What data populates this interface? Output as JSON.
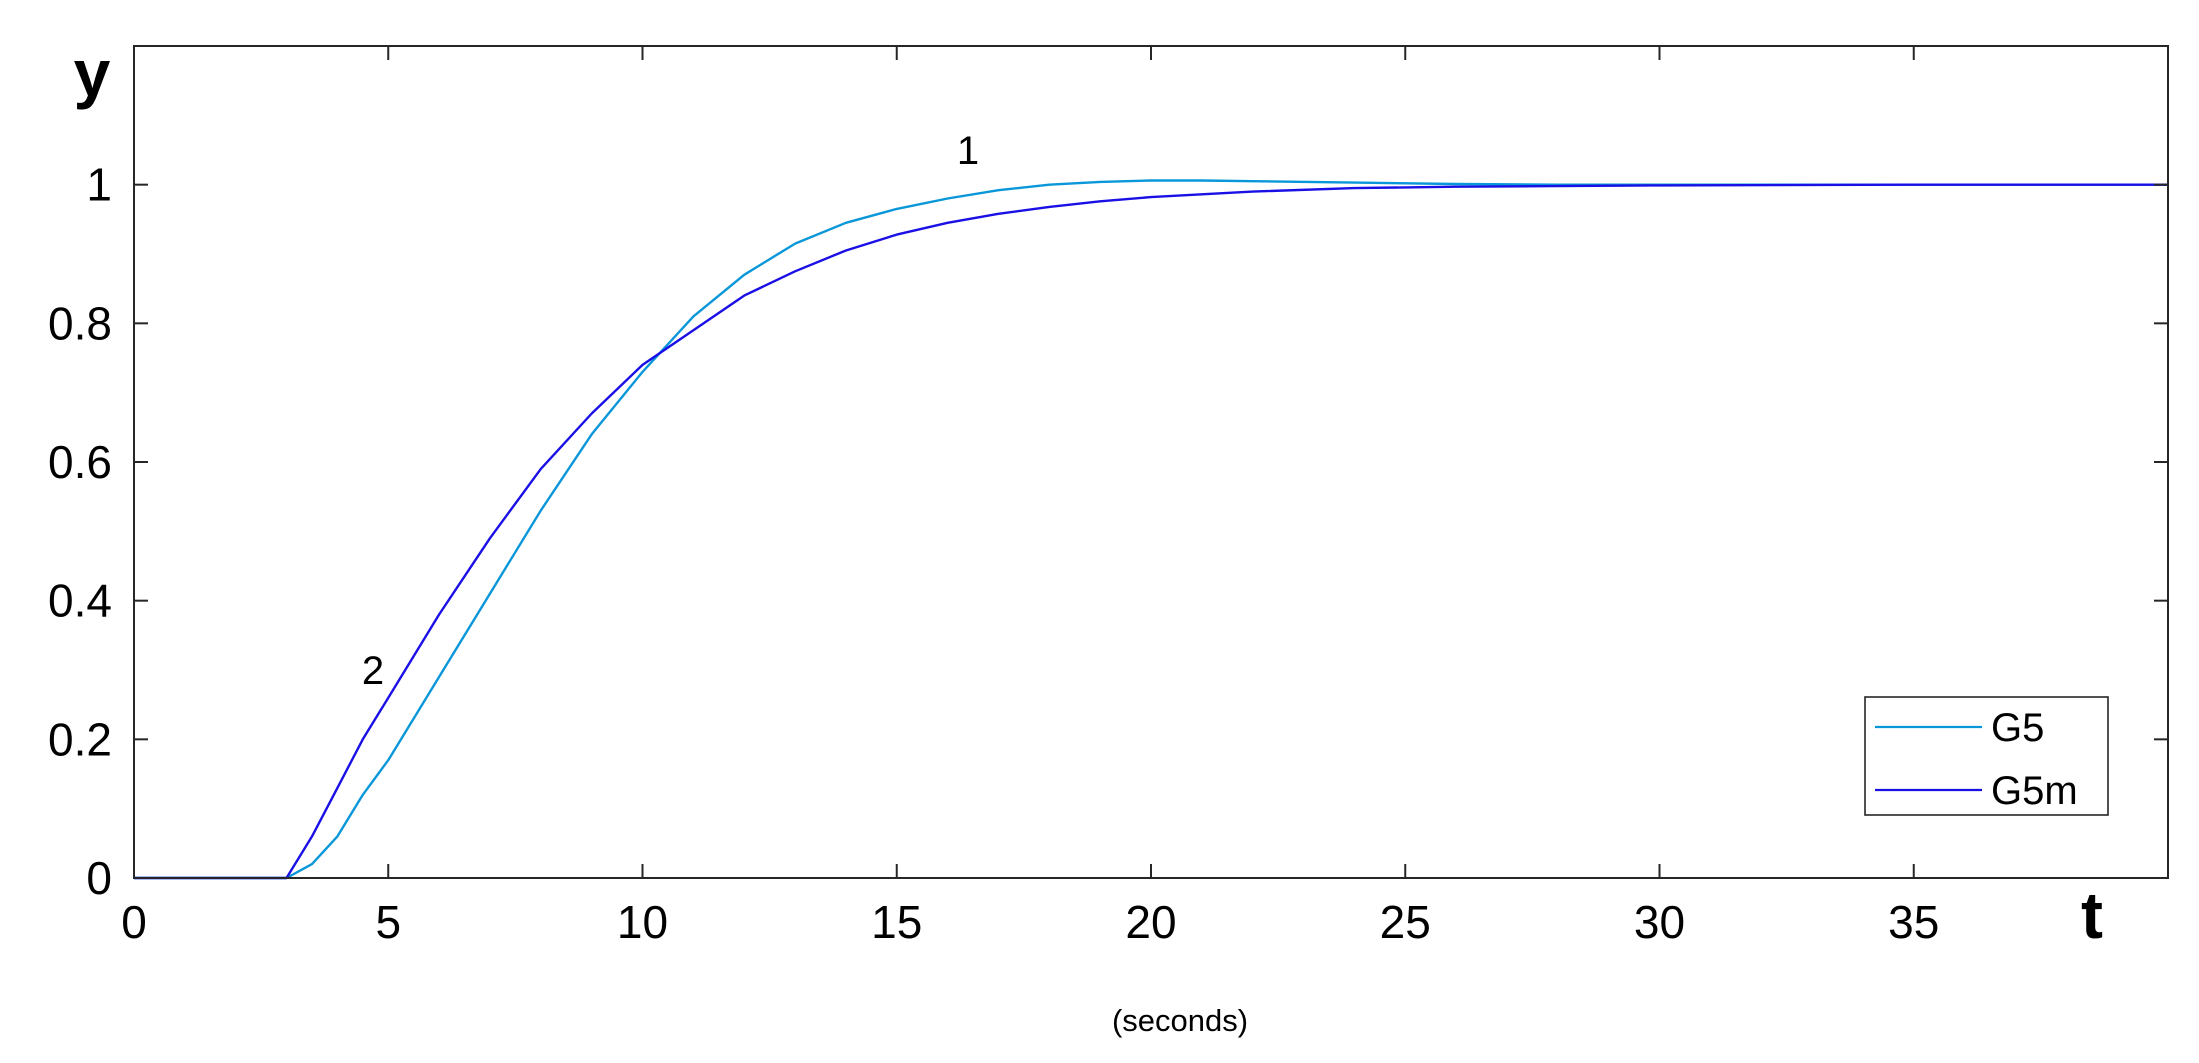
{
  "chart_data": {
    "type": "line",
    "title": "",
    "xlabel": "t",
    "ylabel": "y",
    "x_unit": "(seconds)",
    "xlim": [
      0,
      40
    ],
    "ylim": [
      0,
      1.2
    ],
    "x_ticks": [
      0,
      5,
      10,
      15,
      20,
      25,
      30,
      35
    ],
    "x_tick_labels": [
      "0",
      "5",
      "10",
      "15",
      "20",
      "25",
      "30",
      "35"
    ],
    "y_ticks": [
      0,
      0.2,
      0.4,
      0.6,
      0.8,
      1
    ],
    "y_tick_labels": [
      "0",
      "0.2",
      "0.4",
      "0.6",
      "0.8",
      "1"
    ],
    "grid": false,
    "legend_position": "bottom-right",
    "series": [
      {
        "name": "G5",
        "color": "#0a97d9",
        "x": [
          0,
          3,
          3.5,
          4,
          4.5,
          5,
          5.5,
          6,
          7,
          8,
          9,
          10,
          11,
          12,
          13,
          14,
          15,
          16,
          17,
          18,
          19,
          20,
          21,
          22,
          24,
          26,
          28,
          30,
          35,
          40
        ],
        "y": [
          0,
          0,
          0.02,
          0.06,
          0.12,
          0.17,
          0.23,
          0.29,
          0.41,
          0.53,
          0.64,
          0.73,
          0.81,
          0.87,
          0.915,
          0.945,
          0.965,
          0.98,
          0.992,
          1.0,
          1.004,
          1.006,
          1.006,
          1.005,
          1.003,
          1.001,
          1.0,
          1.0,
          1.0,
          1.0
        ]
      },
      {
        "name": "G5m",
        "color": "#1a10e6",
        "x": [
          0,
          3,
          3.5,
          4,
          4.5,
          5,
          5.5,
          6,
          7,
          8,
          9,
          10,
          11,
          12,
          13,
          14,
          15,
          16,
          17,
          18,
          19,
          20,
          22,
          24,
          26,
          28,
          30,
          35,
          40
        ],
        "y": [
          0,
          0,
          0.06,
          0.13,
          0.2,
          0.26,
          0.32,
          0.38,
          0.49,
          0.59,
          0.67,
          0.74,
          0.79,
          0.84,
          0.875,
          0.905,
          0.928,
          0.945,
          0.958,
          0.968,
          0.976,
          0.982,
          0.99,
          0.995,
          0.997,
          0.998,
          0.999,
          1.0,
          1.0
        ]
      }
    ],
    "annotations": [
      {
        "text": "1",
        "x": 16.4,
        "y": 1.03
      },
      {
        "text": "2",
        "x": 4.7,
        "y": 0.28
      }
    ]
  }
}
